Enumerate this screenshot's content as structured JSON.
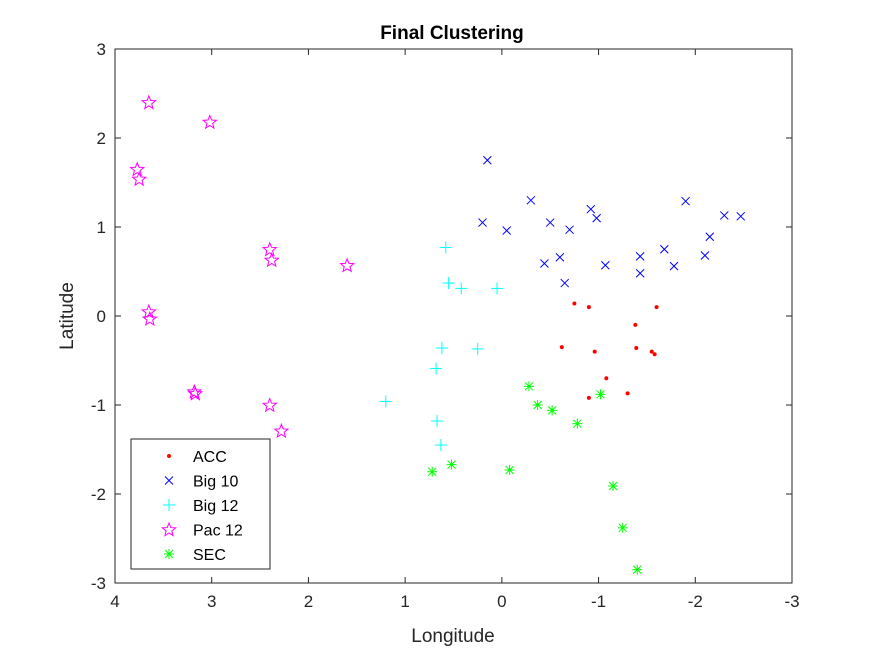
{
  "chart_data": {
    "type": "scatter",
    "title": "Final Clustering",
    "xlabel": "Longitude",
    "ylabel": "Latitude",
    "xlim": [
      4,
      -3
    ],
    "ylim": [
      -3,
      3
    ],
    "x_reversed": true,
    "xticks": [
      4,
      3,
      2,
      1,
      0,
      -1,
      -2,
      -3
    ],
    "yticks": [
      -3,
      -2,
      -1,
      0,
      1,
      2,
      3
    ],
    "grid": false,
    "legend_position": "bottom-left",
    "series": [
      {
        "name": "ACC",
        "marker": "dot",
        "color": "#ff0000",
        "points": [
          [
            -0.75,
            0.14
          ],
          [
            -0.9,
            0.1
          ],
          [
            -1.6,
            0.1
          ],
          [
            -1.38,
            -0.1
          ],
          [
            -0.62,
            -0.35
          ],
          [
            -0.96,
            -0.4
          ],
          [
            -1.39,
            -0.36
          ],
          [
            -1.55,
            -0.4
          ],
          [
            -1.58,
            -0.43
          ],
          [
            -1.08,
            -0.7
          ],
          [
            -0.9,
            -0.92
          ],
          [
            -1.3,
            -0.87
          ]
        ]
      },
      {
        "name": "Big 10",
        "marker": "x",
        "color": "#0000ff",
        "points": [
          [
            0.15,
            1.75
          ],
          [
            -0.3,
            1.3
          ],
          [
            -0.92,
            1.2
          ],
          [
            -0.98,
            1.1
          ],
          [
            -1.9,
            1.29
          ],
          [
            -2.3,
            1.13
          ],
          [
            -2.47,
            1.12
          ],
          [
            -2.15,
            0.89
          ],
          [
            -2.1,
            0.68
          ],
          [
            0.2,
            1.05
          ],
          [
            -0.05,
            0.96
          ],
          [
            -0.5,
            1.05
          ],
          [
            -0.7,
            0.97
          ],
          [
            -0.6,
            0.66
          ],
          [
            -0.44,
            0.59
          ],
          [
            -1.07,
            0.57
          ],
          [
            -1.43,
            0.67
          ],
          [
            -1.43,
            0.48
          ],
          [
            -1.68,
            0.75
          ],
          [
            -1.78,
            0.56
          ],
          [
            -0.65,
            0.37
          ]
        ]
      },
      {
        "name": "Big 12",
        "marker": "plus",
        "color": "#00ffff",
        "points": [
          [
            0.58,
            0.77
          ],
          [
            0.55,
            0.37
          ],
          [
            0.42,
            0.31
          ],
          [
            0.05,
            0.31
          ],
          [
            0.62,
            -0.36
          ],
          [
            0.25,
            -0.37
          ],
          [
            0.68,
            -0.59
          ],
          [
            1.2,
            -0.96
          ],
          [
            0.67,
            -1.18
          ],
          [
            0.63,
            -1.45
          ]
        ]
      },
      {
        "name": "Pac 12",
        "marker": "star",
        "color": "#ff00ff",
        "points": [
          [
            3.65,
            2.4
          ],
          [
            3.02,
            2.18
          ],
          [
            3.77,
            1.65
          ],
          [
            3.75,
            1.54
          ],
          [
            2.4,
            0.75
          ],
          [
            2.38,
            0.63
          ],
          [
            1.6,
            0.57
          ],
          [
            3.65,
            0.05
          ],
          [
            3.64,
            -0.03
          ],
          [
            3.18,
            -0.85
          ],
          [
            3.17,
            -0.87
          ],
          [
            2.4,
            -1.0
          ],
          [
            2.28,
            -1.29
          ]
        ]
      },
      {
        "name": "SEC",
        "marker": "asterisk",
        "color": "#00ff00",
        "points": [
          [
            -0.28,
            -0.79
          ],
          [
            -0.37,
            -1.0
          ],
          [
            -0.52,
            -1.06
          ],
          [
            -1.02,
            -0.88
          ],
          [
            -0.78,
            -1.21
          ],
          [
            0.72,
            -1.75
          ],
          [
            0.52,
            -1.67
          ],
          [
            -0.08,
            -1.73
          ],
          [
            -1.15,
            -1.91
          ],
          [
            -1.25,
            -2.38
          ],
          [
            -1.4,
            -2.85
          ]
        ]
      }
    ]
  }
}
